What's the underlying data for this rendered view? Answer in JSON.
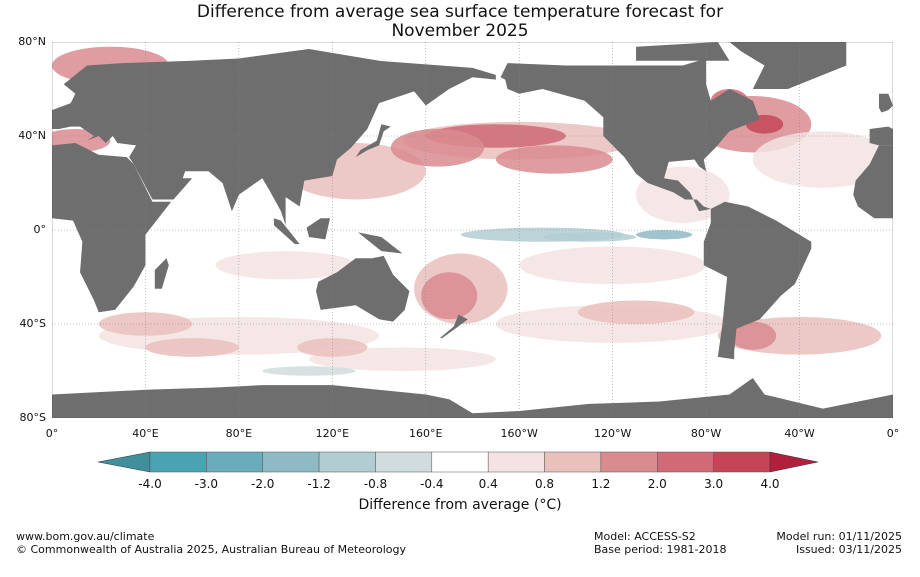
{
  "title": {
    "line1": "Difference from average sea surface temperature forecast for",
    "line2": "November 2025"
  },
  "map": {
    "projection": "equirectangular",
    "lon_range": [
      0,
      360
    ],
    "lat_range": [
      -80,
      80
    ],
    "grid": true,
    "land_color": "#6e6e6e",
    "lat_labels": [
      "80°N",
      "40°N",
      "0°",
      "40°S",
      "80°S"
    ],
    "lon_labels": [
      "0°",
      "40°E",
      "80°E",
      "120°E",
      "160°E",
      "160°W",
      "120°W",
      "80°W",
      "40°W",
      "0°"
    ]
  },
  "colorbar": {
    "ticks": [
      "-4.0",
      "-3.0",
      "-2.0",
      "-1.2",
      "-0.8",
      "-0.4",
      "0.4",
      "0.8",
      "1.2",
      "2.0",
      "3.0",
      "4.0"
    ],
    "colors": [
      "#4aa3b2",
      "#69adba",
      "#8ebac5",
      "#b1cdd2",
      "#d0dcdd",
      "#ffffff",
      "#f5e3e3",
      "#e9c0bc",
      "#d98b90",
      "#cf6a76",
      "#c44656"
    ],
    "under_color": "#3f8f9d",
    "over_color": "#b0203c",
    "label": "Difference from average (°C)"
  },
  "footer": {
    "url": "www.bom.gov.au/climate",
    "copyright": "© Commonwealth of Australia 2025, Australian Bureau of Meteorology",
    "model": "Model: ACCESS-S2",
    "base_period": "Base period: 1981-2018",
    "model_run": "Model run: 01/11/2025",
    "issued": "Issued: 03/11/2025"
  }
}
